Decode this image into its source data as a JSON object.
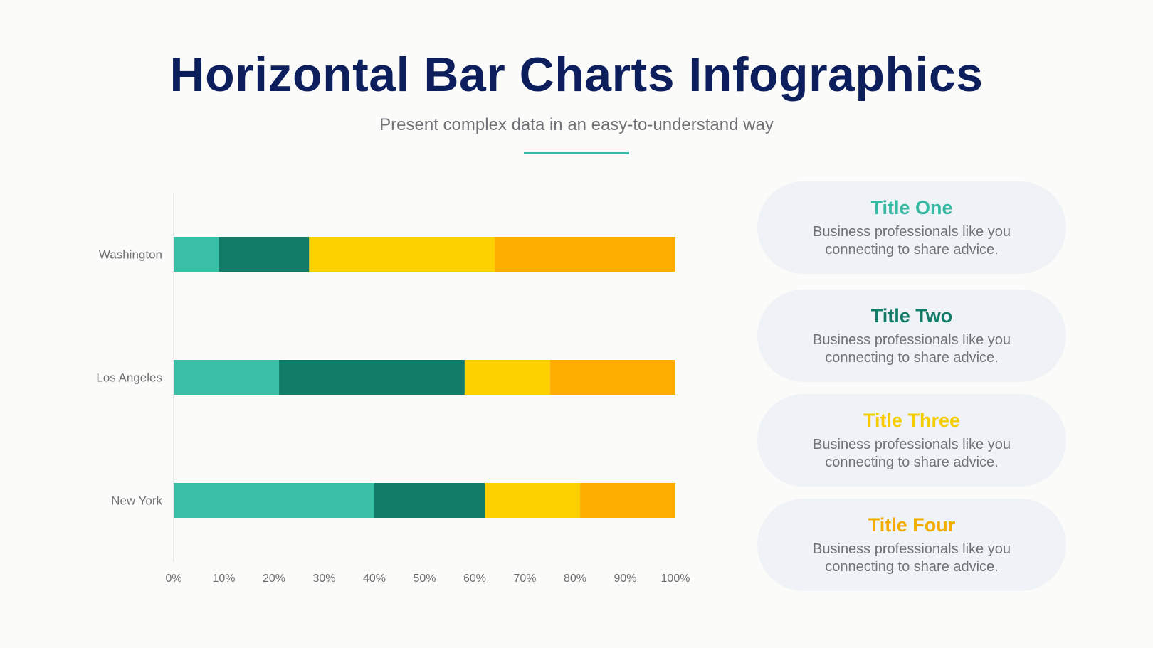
{
  "header": {
    "title": "Horizontal Bar Charts Infographics",
    "subtitle": "Present complex data in an easy-to-understand way"
  },
  "chart_data": {
    "type": "bar",
    "orientation": "horizontal",
    "stacked": true,
    "categories": [
      "Washington",
      "Los Angeles",
      "New York"
    ],
    "series": [
      {
        "color": "#38bfa5",
        "values": [
          9,
          21,
          40
        ]
      },
      {
        "color": "#137c68",
        "values": [
          18,
          37,
          22
        ]
      },
      {
        "color": "#fdd000",
        "values": [
          37,
          17,
          19
        ]
      },
      {
        "color": "#fdae00",
        "values": [
          36,
          25,
          19
        ]
      }
    ],
    "xlim": [
      0,
      100
    ],
    "xticks": [
      "0%",
      "10%",
      "20%",
      "30%",
      "40%",
      "50%",
      "60%",
      "70%",
      "80%",
      "90%",
      "100%"
    ],
    "grid": false,
    "title": "",
    "xlabel": "",
    "ylabel": ""
  },
  "cards": [
    {
      "title": "Title One",
      "color": "#37b8a2",
      "line1": "Business professionals like you",
      "line2": "connecting to share advice."
    },
    {
      "title": "Title Two",
      "color": "#137c68",
      "line1": "Business professionals like you",
      "line2": "connecting to share advice."
    },
    {
      "title": "Title Three",
      "color": "#f5cc00",
      "line1": "Business professionals like you",
      "line2": "connecting to share advice."
    },
    {
      "title": "Title Four",
      "color": "#f2ad00",
      "line1": "Business professionals like you",
      "line2": "connecting to share advice."
    }
  ]
}
